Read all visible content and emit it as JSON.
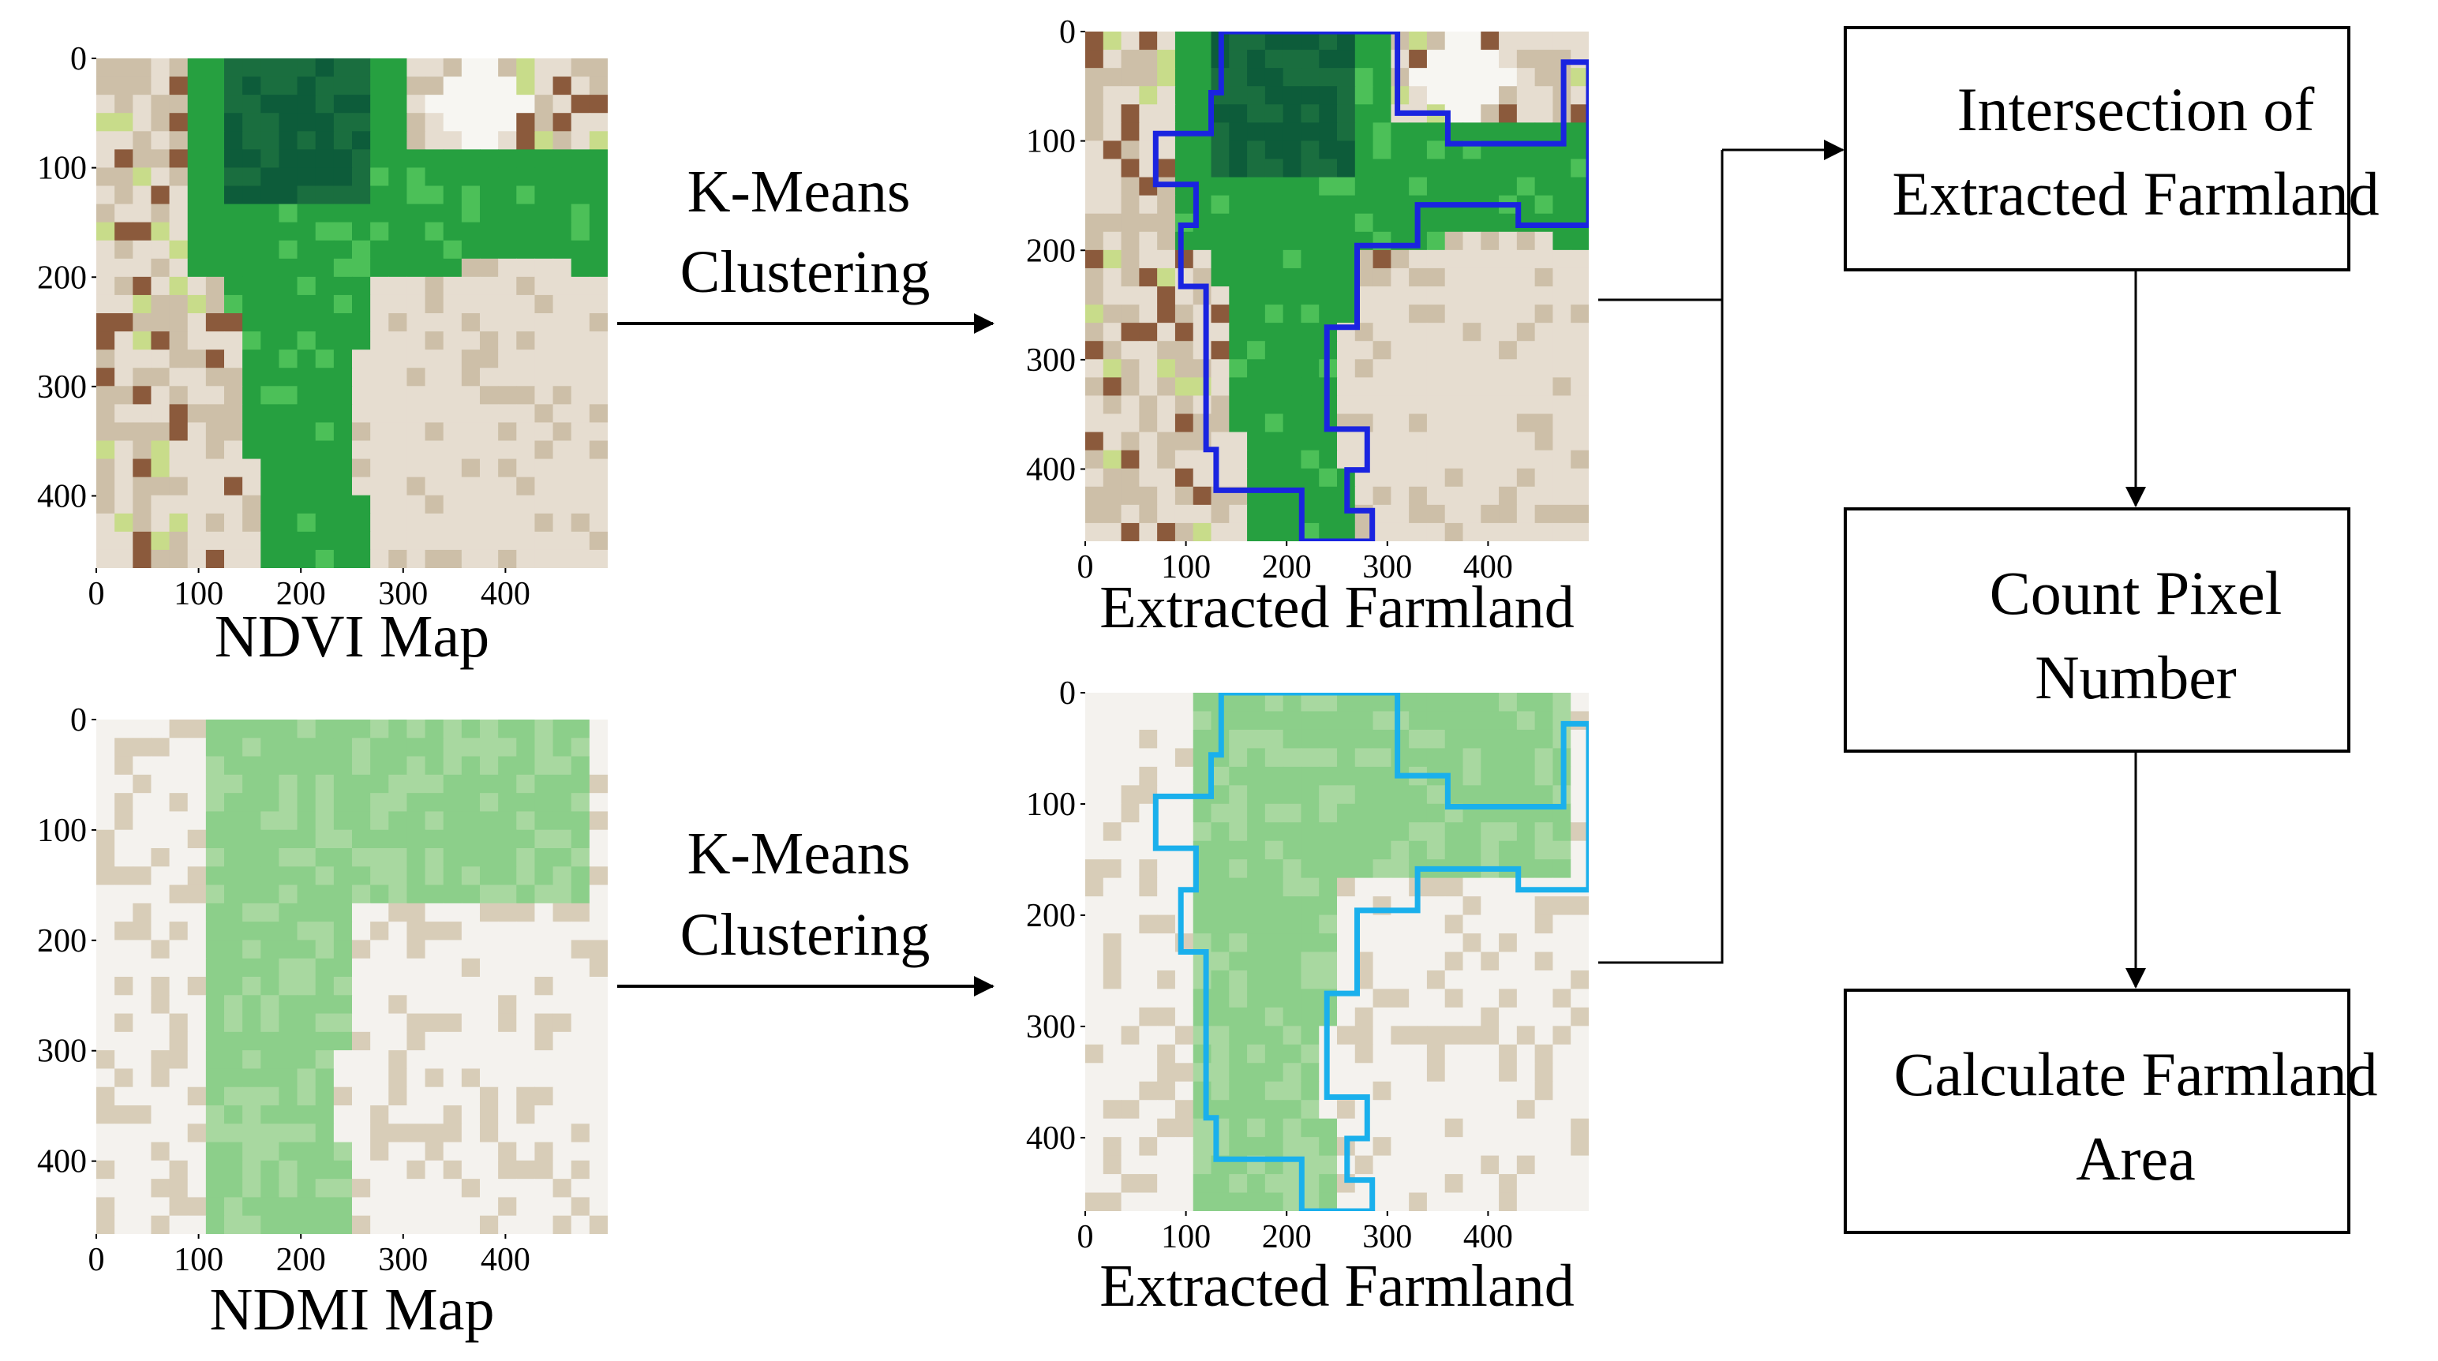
{
  "panels": [
    {
      "id": "ndvi",
      "caption": "NDVI Map",
      "x_ticks": [
        "0",
        "100",
        "200",
        "300",
        "400"
      ],
      "y_ticks": [
        "0",
        "100",
        "200",
        "300",
        "400"
      ],
      "color_scheme": "ndvi",
      "outline": false
    },
    {
      "id": "ndvi-extracted",
      "caption": "Extracted Farmland",
      "x_ticks": [
        "0",
        "100",
        "200",
        "300",
        "400"
      ],
      "y_ticks": [
        "0",
        "100",
        "200",
        "300",
        "400"
      ],
      "color_scheme": "ndvi",
      "outline": true,
      "outline_color": "#1a24e0"
    },
    {
      "id": "ndmi",
      "caption": "NDMI Map",
      "x_ticks": [
        "0",
        "100",
        "200",
        "300",
        "400"
      ],
      "y_ticks": [
        "0",
        "100",
        "200",
        "300",
        "400"
      ],
      "color_scheme": "ndmi",
      "outline": false
    },
    {
      "id": "ndmi-extracted",
      "caption": "Extracted Farmland",
      "x_ticks": [
        "0",
        "100",
        "200",
        "300",
        "400"
      ],
      "y_ticks": [
        "0",
        "100",
        "200",
        "300",
        "400"
      ],
      "color_scheme": "ndmi",
      "outline": true,
      "outline_color": "#1ab0ec"
    }
  ],
  "arrows": {
    "top_label": [
      "K-Means",
      "Clustering"
    ],
    "bottom_label": [
      "K-Means",
      "Clustering"
    ]
  },
  "flow": {
    "boxes": [
      [
        "Intersection of",
        "Extracted Farmland"
      ],
      [
        "Count Pixel",
        "Number"
      ],
      [
        "Calculate Farmland",
        "Area"
      ]
    ]
  },
  "colors": {
    "ndvi_dark_green": "#0d5c3a",
    "ndvi_green": "#26a040",
    "ndvi_light_green": "#4cc058",
    "ndvi_yellow_green": "#c8dc8a",
    "ndvi_brown": "#8b5a3c",
    "ndvi_tan": "#cdbfa8",
    "ndvi_beige": "#e6ddd0",
    "ndmi_green": "#8ccf8a",
    "ndmi_light_green": "#a8d8a0",
    "ndmi_tan": "#d8cdb8",
    "ndmi_white": "#f4f2ee",
    "outline_blue": "#1a24e0",
    "outline_cyan": "#1ab0ec"
  }
}
